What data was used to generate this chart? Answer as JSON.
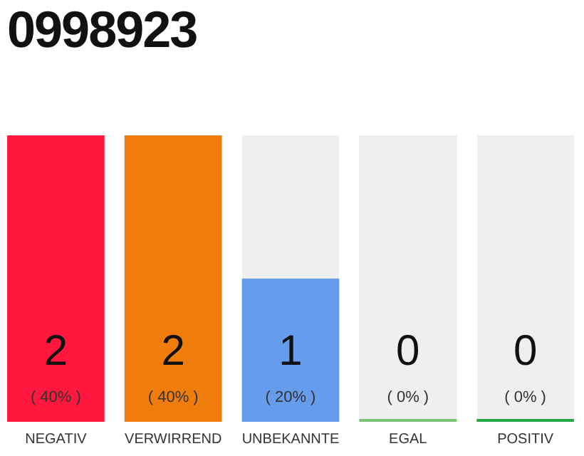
{
  "chart_data": {
    "type": "bar",
    "title": "0998923",
    "categories": [
      "NEGATIV",
      "VERWIRREND",
      "UNBEKANNTE",
      "EGAL",
      "POSITIV"
    ],
    "values": [
      2,
      2,
      1,
      0,
      0
    ],
    "colors": [
      "#ff173d",
      "#f07c0c",
      "#659cec",
      "#7cc576",
      "#22a845"
    ],
    "value_labels": [
      "2\n( 40% )",
      "2\n( 40% )",
      "1\n( 20% )",
      "0\n( 0% )",
      "0\n( 0% )"
    ],
    "tick_labels": "x",
    "grid": false,
    "legend": false
  }
}
